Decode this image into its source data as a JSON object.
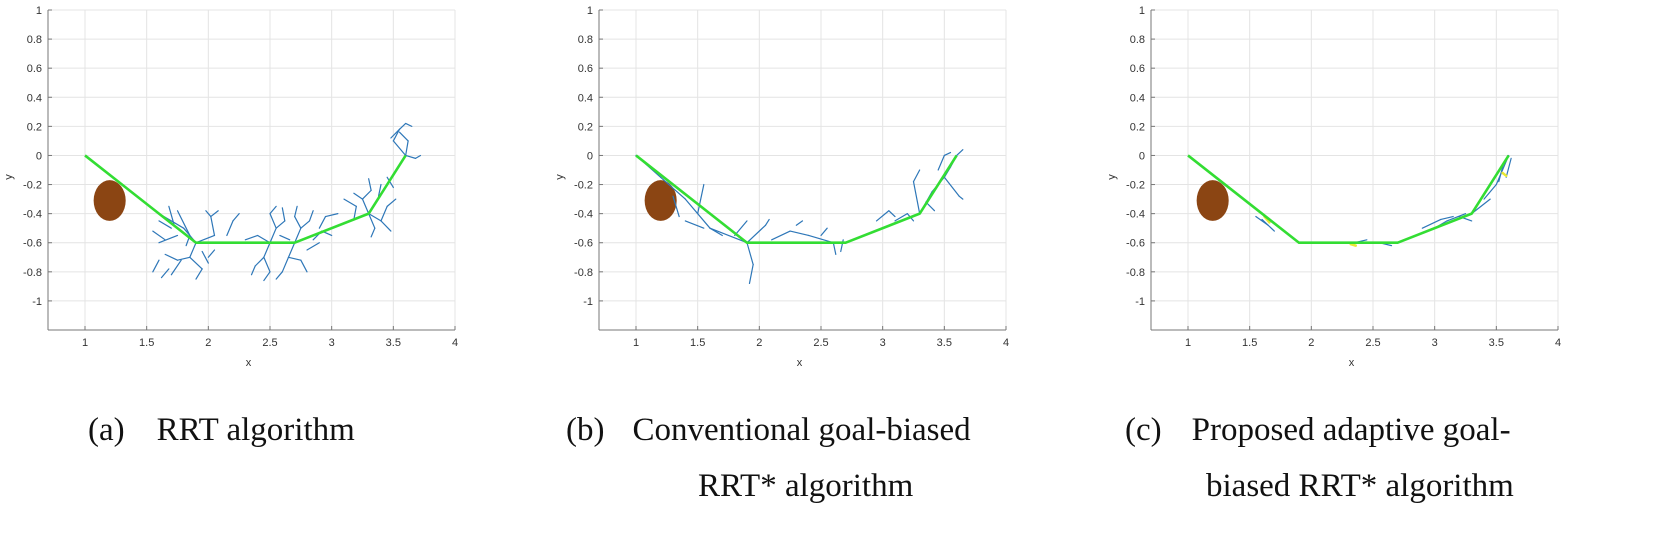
{
  "chart_data": [
    {
      "type": "line",
      "xlabel": "x",
      "ylabel": "y",
      "xlim": [
        0.7,
        4.0
      ],
      "ylim": [
        -1.2,
        1.0
      ],
      "xticks": [
        "1",
        "1.5",
        "2",
        "2.5",
        "3",
        "3.5",
        "4"
      ],
      "yticks": [
        "1",
        "0.8",
        "0.6",
        "0.4",
        "0.2",
        "0",
        "-0.2",
        "-0.4",
        "-0.6",
        "-0.8",
        "-1"
      ],
      "grid": true,
      "obstacle": {
        "cx": 1.2,
        "cy": -0.31,
        "rx": 0.13,
        "ry": 0.14,
        "color": "#8B4513"
      },
      "path": {
        "color": "#33dd33",
        "x": [
          1.0,
          1.9,
          2.7,
          3.3,
          3.6
        ],
        "y": [
          0.0,
          -0.6,
          -0.6,
          -0.4,
          0.0
        ]
      },
      "tree": {
        "color": "#2e77b8",
        "segments": [
          [
            1.6,
            -0.4,
            1.8,
            -0.5
          ],
          [
            1.8,
            -0.5,
            1.9,
            -0.6
          ],
          [
            1.75,
            -0.38,
            1.85,
            -0.55
          ],
          [
            1.85,
            -0.55,
            1.82,
            -0.62
          ],
          [
            1.6,
            -0.45,
            1.7,
            -0.5
          ],
          [
            1.6,
            -0.6,
            1.75,
            -0.55
          ],
          [
            1.68,
            -0.35,
            1.72,
            -0.47
          ],
          [
            1.55,
            -0.52,
            1.65,
            -0.58
          ],
          [
            1.9,
            -0.6,
            1.85,
            -0.7
          ],
          [
            1.85,
            -0.7,
            1.75,
            -0.72
          ],
          [
            1.75,
            -0.72,
            1.65,
            -0.68
          ],
          [
            1.85,
            -0.7,
            1.95,
            -0.78
          ],
          [
            1.95,
            -0.78,
            1.9,
            -0.85
          ],
          [
            1.78,
            -0.72,
            1.7,
            -0.82
          ],
          [
            1.9,
            -0.6,
            2.05,
            -0.55
          ],
          [
            2.05,
            -0.55,
            2.02,
            -0.42
          ],
          [
            2.02,
            -0.42,
            1.98,
            -0.38
          ],
          [
            2.02,
            -0.42,
            2.08,
            -0.38
          ],
          [
            1.6,
            -0.72,
            1.55,
            -0.8
          ],
          [
            1.68,
            -0.78,
            1.62,
            -0.84
          ],
          [
            2.0,
            -0.7,
            2.05,
            -0.65
          ],
          [
            1.95,
            -0.66,
            2.0,
            -0.74
          ],
          [
            2.2,
            -0.45,
            2.15,
            -0.55
          ],
          [
            2.2,
            -0.45,
            2.25,
            -0.4
          ],
          [
            2.4,
            -0.55,
            2.5,
            -0.6
          ],
          [
            2.5,
            -0.6,
            2.55,
            -0.5
          ],
          [
            2.55,
            -0.5,
            2.5,
            -0.4
          ],
          [
            2.5,
            -0.4,
            2.55,
            -0.35
          ],
          [
            2.55,
            -0.5,
            2.62,
            -0.45
          ],
          [
            2.62,
            -0.45,
            2.6,
            -0.36
          ],
          [
            2.7,
            -0.6,
            2.65,
            -0.7
          ],
          [
            2.65,
            -0.7,
            2.6,
            -0.8
          ],
          [
            2.6,
            -0.8,
            2.55,
            -0.85
          ],
          [
            2.65,
            -0.7,
            2.75,
            -0.72
          ],
          [
            2.75,
            -0.72,
            2.8,
            -0.8
          ],
          [
            2.5,
            -0.6,
            2.45,
            -0.7
          ],
          [
            2.45,
            -0.7,
            2.38,
            -0.76
          ],
          [
            2.45,
            -0.7,
            2.5,
            -0.8
          ],
          [
            2.5,
            -0.8,
            2.45,
            -0.86
          ],
          [
            2.38,
            -0.76,
            2.35,
            -0.82
          ],
          [
            2.7,
            -0.6,
            2.75,
            -0.5
          ],
          [
            2.75,
            -0.5,
            2.7,
            -0.42
          ],
          [
            2.75,
            -0.5,
            2.82,
            -0.45
          ],
          [
            2.82,
            -0.45,
            2.85,
            -0.38
          ],
          [
            2.7,
            -0.42,
            2.72,
            -0.35
          ],
          [
            2.85,
            -0.58,
            2.92,
            -0.52
          ],
          [
            2.92,
            -0.52,
            3.0,
            -0.55
          ],
          [
            2.9,
            -0.5,
            2.95,
            -0.42
          ],
          [
            2.95,
            -0.42,
            3.05,
            -0.4
          ],
          [
            2.8,
            -0.65,
            2.9,
            -0.6
          ],
          [
            2.58,
            -0.55,
            2.66,
            -0.58
          ],
          [
            2.3,
            -0.58,
            2.4,
            -0.55
          ],
          [
            3.3,
            -0.4,
            3.25,
            -0.3
          ],
          [
            3.25,
            -0.3,
            3.18,
            -0.26
          ],
          [
            3.25,
            -0.3,
            3.32,
            -0.24
          ],
          [
            3.32,
            -0.24,
            3.3,
            -0.16
          ],
          [
            3.3,
            -0.4,
            3.4,
            -0.45
          ],
          [
            3.4,
            -0.45,
            3.48,
            -0.52
          ],
          [
            3.4,
            -0.45,
            3.45,
            -0.35
          ],
          [
            3.45,
            -0.35,
            3.52,
            -0.3
          ],
          [
            3.3,
            -0.4,
            3.35,
            -0.5
          ],
          [
            3.35,
            -0.5,
            3.32,
            -0.56
          ],
          [
            3.1,
            -0.3,
            3.2,
            -0.35
          ],
          [
            3.2,
            -0.35,
            3.18,
            -0.44
          ],
          [
            3.6,
            0.0,
            3.5,
            0.1
          ],
          [
            3.5,
            0.1,
            3.55,
            0.18
          ],
          [
            3.55,
            0.18,
            3.6,
            0.22
          ],
          [
            3.6,
            0.22,
            3.65,
            0.2
          ],
          [
            3.55,
            0.18,
            3.48,
            0.12
          ],
          [
            3.6,
            0.0,
            3.68,
            -0.02
          ],
          [
            3.68,
            -0.02,
            3.72,
            0.0
          ],
          [
            3.6,
            0.0,
            3.62,
            0.1
          ],
          [
            3.62,
            0.1,
            3.55,
            0.16
          ],
          [
            3.45,
            -0.15,
            3.5,
            -0.22
          ],
          [
            3.4,
            -0.2,
            3.38,
            -0.28
          ]
        ]
      }
    },
    {
      "type": "line",
      "xlabel": "x",
      "ylabel": "y",
      "xlim": [
        0.7,
        4.0
      ],
      "ylim": [
        -1.2,
        1.0
      ],
      "xticks": [
        "1",
        "1.5",
        "2",
        "2.5",
        "3",
        "3.5",
        "4"
      ],
      "yticks": [
        "1",
        "0.8",
        "0.6",
        "0.4",
        "0.2",
        "0",
        "-0.2",
        "-0.4",
        "-0.6",
        "-0.8",
        "-1"
      ],
      "grid": true,
      "obstacle": {
        "cx": 1.2,
        "cy": -0.31,
        "rx": 0.13,
        "ry": 0.14,
        "color": "#8B4513"
      },
      "path": {
        "color": "#33dd33",
        "x": [
          1.0,
          1.9,
          2.7,
          3.3,
          3.6
        ],
        "y": [
          0.0,
          -0.6,
          -0.6,
          -0.4,
          0.0
        ]
      },
      "tree": {
        "color": "#2e77b8",
        "segments": [
          [
            1.0,
            0.0,
            1.2,
            -0.15
          ],
          [
            1.2,
            -0.15,
            1.4,
            -0.3
          ],
          [
            1.4,
            -0.3,
            1.6,
            -0.5
          ],
          [
            1.6,
            -0.5,
            1.9,
            -0.6
          ],
          [
            1.3,
            -0.28,
            1.35,
            -0.42
          ],
          [
            1.5,
            -0.4,
            1.55,
            -0.2
          ],
          [
            1.4,
            -0.45,
            1.55,
            -0.5
          ],
          [
            1.6,
            -0.5,
            1.7,
            -0.55
          ],
          [
            1.9,
            -0.6,
            1.95,
            -0.75
          ],
          [
            1.95,
            -0.75,
            1.92,
            -0.88
          ],
          [
            1.9,
            -0.6,
            2.05,
            -0.48
          ],
          [
            2.05,
            -0.48,
            2.08,
            -0.44
          ],
          [
            1.8,
            -0.55,
            1.9,
            -0.45
          ],
          [
            2.1,
            -0.58,
            2.25,
            -0.52
          ],
          [
            2.25,
            -0.52,
            2.4,
            -0.55
          ],
          [
            2.4,
            -0.55,
            2.6,
            -0.6
          ],
          [
            2.3,
            -0.48,
            2.35,
            -0.45
          ],
          [
            2.5,
            -0.55,
            2.55,
            -0.5
          ],
          [
            2.6,
            -0.6,
            2.62,
            -0.68
          ],
          [
            2.68,
            -0.58,
            2.66,
            -0.66
          ],
          [
            2.7,
            -0.6,
            2.85,
            -0.55
          ],
          [
            2.85,
            -0.55,
            3.0,
            -0.5
          ],
          [
            3.0,
            -0.5,
            3.15,
            -0.45
          ],
          [
            3.15,
            -0.45,
            3.3,
            -0.4
          ],
          [
            2.95,
            -0.45,
            3.05,
            -0.38
          ],
          [
            3.05,
            -0.38,
            3.1,
            -0.42
          ],
          [
            3.1,
            -0.45,
            3.2,
            -0.4
          ],
          [
            3.2,
            -0.4,
            3.25,
            -0.45
          ],
          [
            3.3,
            -0.4,
            3.25,
            -0.18
          ],
          [
            3.25,
            -0.18,
            3.3,
            -0.1
          ],
          [
            3.3,
            -0.4,
            3.4,
            -0.25
          ],
          [
            3.4,
            -0.25,
            3.5,
            -0.15
          ],
          [
            3.5,
            -0.15,
            3.55,
            -0.08
          ],
          [
            3.5,
            -0.15,
            3.62,
            -0.28
          ],
          [
            3.62,
            -0.28,
            3.65,
            -0.3
          ],
          [
            3.55,
            -0.08,
            3.6,
            0.0
          ],
          [
            3.6,
            0.0,
            3.65,
            0.04
          ],
          [
            3.5,
            0.0,
            3.55,
            0.02
          ],
          [
            3.45,
            -0.1,
            3.5,
            0.0
          ],
          [
            3.35,
            -0.32,
            3.42,
            -0.38
          ]
        ]
      }
    },
    {
      "type": "line",
      "xlabel": "x",
      "ylabel": "y",
      "xlim": [
        0.7,
        4.0
      ],
      "ylim": [
        -1.2,
        1.0
      ],
      "xticks": [
        "1",
        "1.5",
        "2",
        "2.5",
        "3",
        "3.5",
        "4"
      ],
      "yticks": [
        "1",
        "0.8",
        "0.6",
        "0.4",
        "0.2",
        "0",
        "-0.2",
        "-0.4",
        "-0.6",
        "-0.8",
        "-1"
      ],
      "grid": true,
      "obstacle": {
        "cx": 1.2,
        "cy": -0.31,
        "rx": 0.13,
        "ry": 0.14,
        "color": "#8B4513"
      },
      "path": {
        "color": "#33dd33",
        "x": [
          1.0,
          1.9,
          2.7,
          3.3,
          3.6
        ],
        "y": [
          0.0,
          -0.6,
          -0.6,
          -0.4,
          0.0
        ]
      },
      "highlight_color": "#e8e833",
      "tree": {
        "color": "#2e77b8",
        "segments": [
          [
            1.6,
            -0.44,
            1.7,
            -0.52
          ],
          [
            1.55,
            -0.42,
            1.65,
            -0.48
          ],
          [
            2.35,
            -0.6,
            2.45,
            -0.58
          ],
          [
            2.55,
            -0.6,
            2.65,
            -0.62
          ],
          [
            2.9,
            -0.5,
            3.05,
            -0.44
          ],
          [
            3.05,
            -0.44,
            3.15,
            -0.42
          ],
          [
            3.0,
            -0.5,
            3.1,
            -0.45
          ],
          [
            3.1,
            -0.45,
            3.25,
            -0.4
          ],
          [
            3.2,
            -0.42,
            3.3,
            -0.45
          ],
          [
            3.3,
            -0.4,
            3.45,
            -0.3
          ],
          [
            3.4,
            -0.3,
            3.5,
            -0.2
          ],
          [
            3.5,
            -0.2,
            3.55,
            -0.1
          ],
          [
            3.55,
            -0.1,
            3.6,
            0.0
          ],
          [
            3.58,
            -0.15,
            3.62,
            -0.02
          ],
          [
            3.52,
            -0.18,
            3.56,
            -0.05
          ]
        ]
      },
      "highlights": [
        [
          1.62,
          -0.42,
          1.66,
          -0.46
        ],
        [
          2.32,
          -0.61,
          2.36,
          -0.62
        ],
        [
          3.55,
          -0.12,
          3.58,
          -0.14
        ]
      ]
    }
  ],
  "captions": [
    {
      "label": "(a)",
      "lines": [
        "RRT algorithm"
      ]
    },
    {
      "label": "(b)",
      "lines": [
        "Conventional goal-biased",
        "RRT* algorithm"
      ]
    },
    {
      "label": "(c)",
      "lines": [
        "Proposed adaptive goal-",
        "biased RRT* algorithm"
      ]
    }
  ]
}
